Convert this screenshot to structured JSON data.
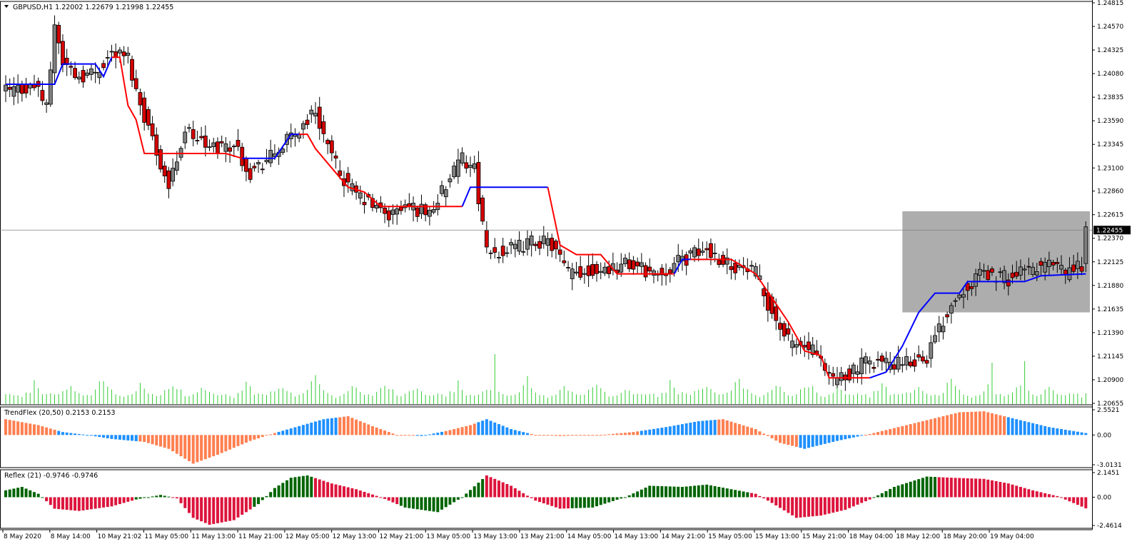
{
  "chart_data": [
    {
      "type": "candlestick",
      "title": "GBPUSD,H1  1.22002 1.22679 1.21998 1.22455",
      "ylim": [
        1.20655,
        1.24815
      ],
      "y_ticks": [
        "1.24815",
        "1.24570",
        "1.24325",
        "1.24080",
        "1.23835",
        "1.23590",
        "1.23345",
        "1.23100",
        "1.22860",
        "1.22615",
        "1.22370",
        "1.22125",
        "1.21880",
        "1.21635",
        "1.21390",
        "1.21145",
        "1.20900",
        "1.20655"
      ],
      "current_price": "1.22455",
      "x_labels": [
        "8 May 2020",
        "8 May 14:00",
        "10 May 21:02",
        "11 May 05:00",
        "11 May 13:00",
        "11 May 21:00",
        "12 May 05:00",
        "12 May 13:00",
        "12 May 21:00",
        "13 May 05:00",
        "13 May 13:00",
        "13 May 21:00",
        "14 May 05:00",
        "14 May 13:00",
        "14 May 21:00",
        "15 May 05:00",
        "15 May 13:00",
        "15 May 21:00",
        "18 May 04:00",
        "18 May 12:00",
        "18 May 20:00",
        "19 May 04:00"
      ],
      "price_path": [
        [
          0,
          1.239
        ],
        [
          8,
          1.2395
        ],
        [
          10,
          1.237
        ],
        [
          12,
          1.246
        ],
        [
          14,
          1.242
        ],
        [
          18,
          1.2405
        ],
        [
          22,
          1.241
        ],
        [
          26,
          1.243
        ],
        [
          30,
          1.2425
        ],
        [
          32,
          1.239
        ],
        [
          36,
          1.234
        ],
        [
          40,
          1.229
        ],
        [
          44,
          1.235
        ],
        [
          50,
          1.233
        ],
        [
          56,
          1.2335
        ],
        [
          60,
          1.2305
        ],
        [
          66,
          1.2325
        ],
        [
          72,
          1.235
        ],
        [
          76,
          1.237
        ],
        [
          80,
          1.232
        ],
        [
          84,
          1.229
        ],
        [
          90,
          1.227
        ],
        [
          94,
          1.226
        ],
        [
          98,
          1.227
        ],
        [
          104,
          1.2265
        ],
        [
          108,
          1.229
        ],
        [
          112,
          1.232
        ],
        [
          115,
          1.231
        ],
        [
          118,
          1.222
        ],
        [
          124,
          1.2225
        ],
        [
          130,
          1.2235
        ],
        [
          134,
          1.223
        ],
        [
          138,
          1.22
        ],
        [
          146,
          1.2205
        ],
        [
          152,
          1.221
        ],
        [
          160,
          1.22
        ],
        [
          166,
          1.2215
        ],
        [
          172,
          1.2225
        ],
        [
          178,
          1.221
        ],
        [
          184,
          1.22
        ],
        [
          188,
          1.216
        ],
        [
          192,
          1.213
        ],
        [
          198,
          1.212
        ],
        [
          202,
          1.209
        ],
        [
          206,
          1.2095
        ],
        [
          212,
          1.211
        ],
        [
          220,
          1.2105
        ],
        [
          226,
          1.2115
        ],
        [
          232,
          1.217
        ],
        [
          236,
          1.219
        ],
        [
          240,
          1.22
        ],
        [
          246,
          1.2195
        ],
        [
          252,
          1.2205
        ],
        [
          256,
          1.221
        ],
        [
          260,
          1.22
        ],
        [
          264,
          1.221
        ],
        [
          265,
          1.2245
        ]
      ],
      "supertrend_red_segments": [
        [
          [
            26,
            1.2425
          ],
          [
            28,
            1.2425
          ],
          [
            30,
            1.2375
          ],
          [
            32,
            1.236
          ],
          [
            34,
            1.2325
          ],
          [
            42,
            1.2325
          ],
          [
            54,
            1.2325
          ],
          [
            58,
            1.232
          ]
        ],
        [
          [
            72,
            1.2345
          ],
          [
            74,
            1.2345
          ],
          [
            76,
            1.233
          ],
          [
            80,
            1.231
          ],
          [
            84,
            1.229
          ],
          [
            88,
            1.2285
          ],
          [
            92,
            1.227
          ],
          [
            98,
            1.227
          ],
          [
            106,
            1.227
          ],
          [
            112,
            1.227
          ]
        ],
        [
          [
            133,
            1.229
          ],
          [
            134,
            1.227
          ],
          [
            136,
            1.223
          ],
          [
            140,
            1.222
          ],
          [
            146,
            1.222
          ],
          [
            150,
            1.22
          ],
          [
            156,
            1.22
          ],
          [
            164,
            1.22
          ]
        ],
        [
          [
            168,
            1.2215
          ],
          [
            178,
            1.2215
          ],
          [
            184,
            1.22
          ],
          [
            188,
            1.2175
          ],
          [
            192,
            1.215
          ],
          [
            196,
            1.212
          ],
          [
            200,
            1.2115
          ],
          [
            202,
            1.2092
          ],
          [
            212,
            1.2092
          ]
        ]
      ],
      "supertrend_blue_segments": [
        [
          [
            0,
            1.2397
          ],
          [
            12,
            1.2397
          ],
          [
            14,
            1.2418
          ],
          [
            22,
            1.2418
          ],
          [
            24,
            1.2405
          ],
          [
            26,
            1.2425
          ]
        ],
        [
          [
            58,
            1.232
          ],
          [
            66,
            1.232
          ],
          [
            70,
            1.2345
          ],
          [
            72,
            1.2345
          ]
        ],
        [
          [
            112,
            1.227
          ],
          [
            114,
            1.229
          ],
          [
            122,
            1.229
          ],
          [
            133,
            1.229
          ]
        ],
        [
          [
            164,
            1.22
          ],
          [
            166,
            1.2215
          ],
          [
            168,
            1.2215
          ]
        ],
        [
          [
            212,
            1.2092
          ],
          [
            216,
            1.2098
          ],
          [
            220,
            1.2125
          ],
          [
            224,
            1.216
          ],
          [
            228,
            1.218
          ],
          [
            234,
            1.218
          ],
          [
            236,
            1.2192
          ],
          [
            250,
            1.2192
          ],
          [
            254,
            1.2198
          ],
          [
            265,
            1.22
          ]
        ]
      ],
      "highlight_box": {
        "price_top": 1.2265,
        "price_bottom": 1.216,
        "x_from": 220,
        "x_to": 266
      },
      "volume_pattern": [
        14,
        14,
        14,
        13,
        10,
        16,
        18,
        30,
        22,
        14,
        15,
        14,
        13,
        16,
        18,
        22,
        24,
        20,
        15,
        12,
        14,
        14,
        18,
        28,
        36,
        25,
        18,
        15,
        12,
        10,
        12,
        15,
        20,
        26,
        22,
        16,
        14,
        12,
        14,
        18,
        22,
        26,
        24,
        18,
        12,
        10,
        14,
        18,
        22,
        20,
        16,
        14
      ],
      "series_count": 266
    },
    {
      "type": "histogram",
      "title": "TrendFlex (20,50) 0.2153 0.2153",
      "ylim": [
        -3.0131,
        2.5521
      ],
      "y_ticks": [
        "2.5521",
        "0.00",
        "-3.0131"
      ],
      "wave": [
        [
          0,
          1.6
        ],
        [
          8,
          1.0
        ],
        [
          14,
          0.3
        ],
        [
          20,
          0.0
        ],
        [
          26,
          -0.4
        ],
        [
          34,
          -0.7
        ],
        [
          40,
          -1.4
        ],
        [
          46,
          -2.9
        ],
        [
          52,
          -2.0
        ],
        [
          60,
          -0.6
        ],
        [
          66,
          0.2
        ],
        [
          72,
          0.9
        ],
        [
          78,
          1.6
        ],
        [
          84,
          1.9
        ],
        [
          90,
          0.9
        ],
        [
          96,
          0.0
        ],
        [
          102,
          -0.1
        ],
        [
          108,
          0.4
        ],
        [
          114,
          1.0
        ],
        [
          118,
          1.6
        ],
        [
          124,
          0.6
        ],
        [
          130,
          0.0
        ],
        [
          136,
          -0.1
        ],
        [
          146,
          0.0
        ],
        [
          154,
          0.3
        ],
        [
          162,
          0.8
        ],
        [
          170,
          1.4
        ],
        [
          176,
          1.6
        ],
        [
          184,
          0.6
        ],
        [
          190,
          -0.8
        ],
        [
          196,
          -1.4
        ],
        [
          204,
          -0.6
        ],
        [
          212,
          0.1
        ],
        [
          220,
          0.9
        ],
        [
          228,
          1.7
        ],
        [
          234,
          2.3
        ],
        [
          240,
          2.4
        ],
        [
          248,
          1.6
        ],
        [
          256,
          0.8
        ],
        [
          265,
          0.2
        ]
      ],
      "color_flips": [
        0,
        13,
        33,
        67,
        82,
        101,
        108,
        116,
        129,
        156,
        175,
        195,
        211,
        246
      ]
    },
    {
      "type": "histogram",
      "title": "Reflex (21) -0.9746 -0.9746",
      "ylim": [
        -2.4614,
        2.1451
      ],
      "y_ticks": [
        "2.1451",
        "0.00",
        "-2.4614"
      ],
      "wave": [
        [
          0,
          0.6
        ],
        [
          4,
          0.9
        ],
        [
          8,
          0.3
        ],
        [
          12,
          -1.0
        ],
        [
          18,
          -1.2
        ],
        [
          26,
          -0.8
        ],
        [
          32,
          -0.2
        ],
        [
          38,
          0.2
        ],
        [
          42,
          -0.1
        ],
        [
          46,
          -1.8
        ],
        [
          50,
          -2.4
        ],
        [
          56,
          -2.0
        ],
        [
          62,
          -0.6
        ],
        [
          66,
          0.8
        ],
        [
          70,
          1.7
        ],
        [
          74,
          1.9
        ],
        [
          80,
          1.2
        ],
        [
          86,
          0.7
        ],
        [
          92,
          0.0
        ],
        [
          98,
          -0.9
        ],
        [
          106,
          -1.3
        ],
        [
          112,
          0.0
        ],
        [
          118,
          1.9
        ],
        [
          124,
          1.0
        ],
        [
          130,
          -0.3
        ],
        [
          136,
          -1.0
        ],
        [
          144,
          -0.9
        ],
        [
          152,
          0.0
        ],
        [
          158,
          1.0
        ],
        [
          166,
          0.9
        ],
        [
          172,
          1.1
        ],
        [
          178,
          0.7
        ],
        [
          184,
          0.3
        ],
        [
          188,
          -0.5
        ],
        [
          194,
          -1.8
        ],
        [
          200,
          -1.6
        ],
        [
          206,
          -1.1
        ],
        [
          212,
          -0.2
        ],
        [
          218,
          0.9
        ],
        [
          226,
          1.8
        ],
        [
          232,
          1.7
        ],
        [
          240,
          1.6
        ],
        [
          246,
          1.2
        ],
        [
          252,
          0.6
        ],
        [
          258,
          0.1
        ],
        [
          265,
          -0.97
        ]
      ],
      "red_ranges": [
        [
          10,
          31
        ],
        [
          41,
          60
        ],
        [
          76,
          96
        ],
        [
          118,
          138
        ],
        [
          183,
          212
        ],
        [
          229,
          265
        ]
      ]
    }
  ],
  "colors": {
    "bull": "#808080",
    "bear": "#d40000",
    "wick": "#000000",
    "supertrend_red": "#ff0000",
    "supertrend_blue": "#0000ff",
    "volume": "#33cc33",
    "trendflex_up": "#1e90ff",
    "trendflex_down": "#ff7f50",
    "reflex_up": "#006400",
    "reflex_down": "#dc143c",
    "highlight": "#a9a9a9"
  }
}
